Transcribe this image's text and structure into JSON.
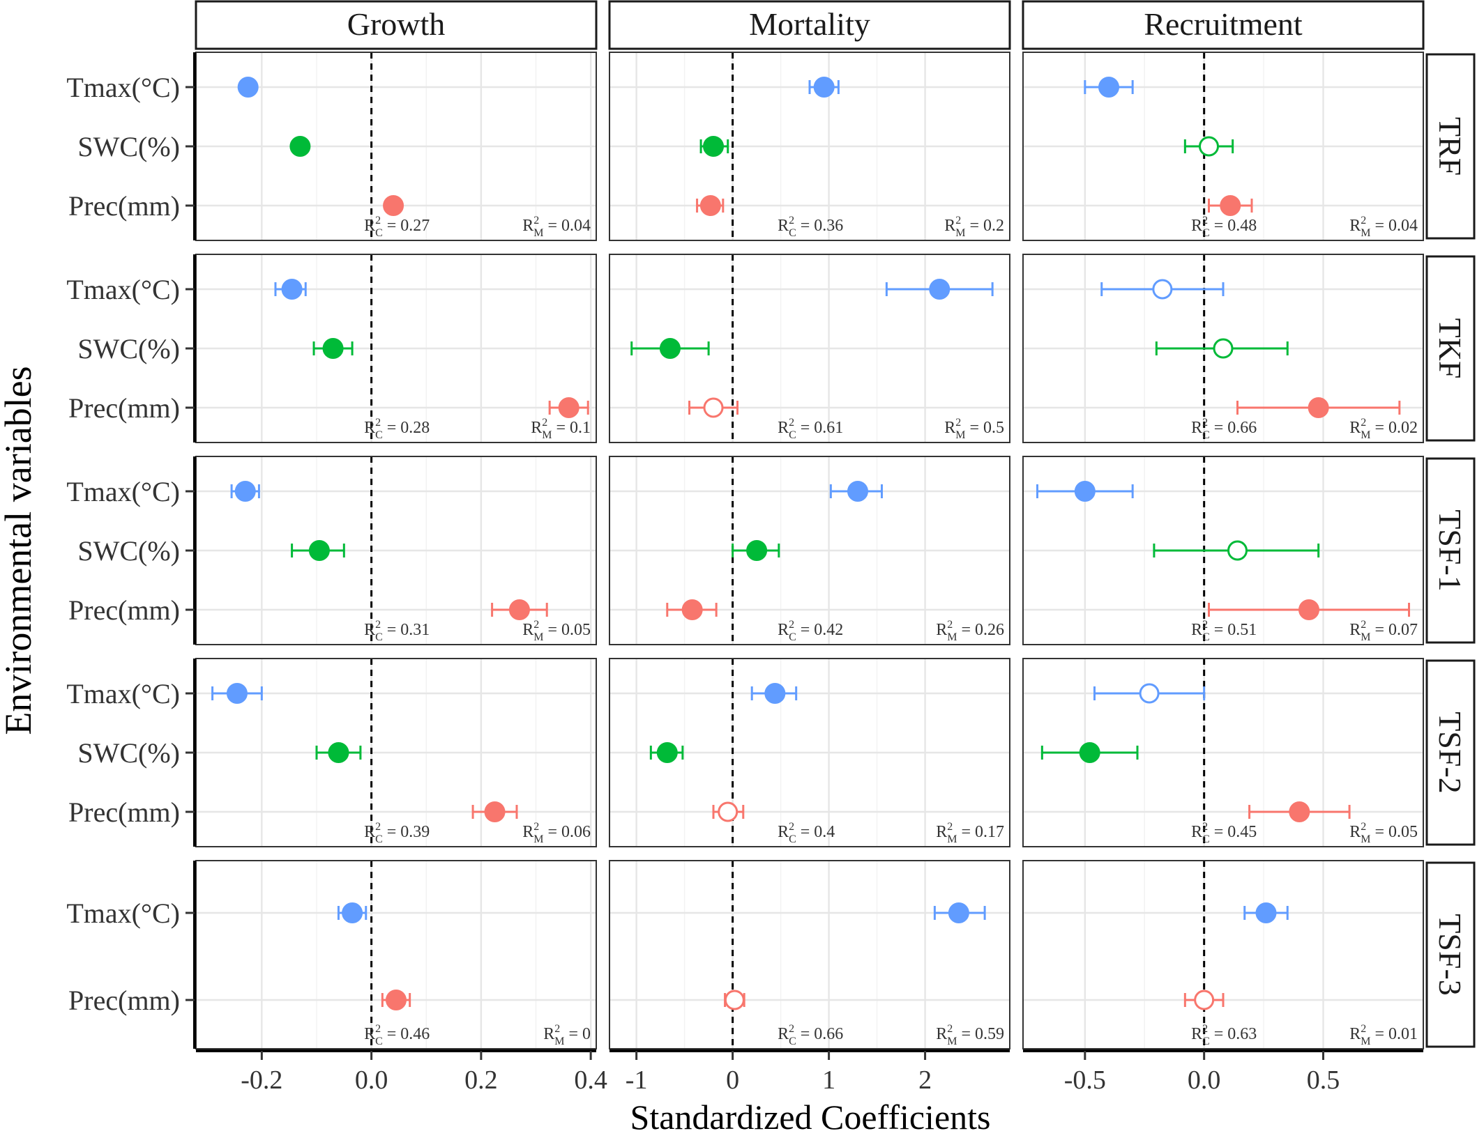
{
  "chart_data": {
    "type": "scatter",
    "subtype": "coefficient-plot with error bars, faceted grid",
    "ylabel": "Environmental variables",
    "xlabel": "Standardized Coefficients",
    "columns": [
      "Growth",
      "Mortality",
      "Recruitment"
    ],
    "rows": [
      "TRF",
      "TKF",
      "TSF-1",
      "TSF-2",
      "TSF-3"
    ],
    "x_axes": [
      {
        "column": "Growth",
        "xlim": [
          -0.32,
          0.41
        ],
        "ticks": [
          -0.2,
          0.0,
          0.2,
          0.4
        ],
        "tick_labels": [
          "-0.2",
          "0.0",
          "0.2",
          "0.4"
        ]
      },
      {
        "column": "Mortality",
        "xlim": [
          -1.28,
          2.88
        ],
        "ticks": [
          -1,
          0,
          1,
          2
        ],
        "tick_labels": [
          "-1",
          "0",
          "1",
          "2"
        ]
      },
      {
        "column": "Recruitment",
        "xlim": [
          -0.76,
          0.92
        ],
        "ticks": [
          -0.5,
          0.0,
          0.5
        ],
        "tick_labels": [
          "-0.5",
          "0.0",
          "0.5"
        ]
      }
    ],
    "reference_line_x": 0,
    "grid": true,
    "series_colors": {
      "Tmax": "#619CFF",
      "SWC": "#00BA38",
      "Prec": "#F8766D"
    },
    "variable_labels": {
      "Tmax": "Tmax(°C)",
      "SWC": "SWC(%)",
      "Prec": "Prec(mm)"
    },
    "r2_c_label": "R",
    "r2_c_sub": "C",
    "r2_m_label": "R",
    "r2_m_sub": "M",
    "r2_sup": "2",
    "panels": [
      {
        "row": "TRF",
        "column": "Growth",
        "r2c": "0.27",
        "r2m": "0.04",
        "points": [
          {
            "var": "Tmax",
            "est": -0.225,
            "lo": -0.235,
            "hi": -0.215,
            "significant": true
          },
          {
            "var": "SWC",
            "est": -0.13,
            "lo": -0.138,
            "hi": -0.122,
            "significant": true
          },
          {
            "var": "Prec",
            "est": 0.04,
            "lo": 0.033,
            "hi": 0.047,
            "significant": true
          }
        ]
      },
      {
        "row": "TRF",
        "column": "Mortality",
        "r2c": "0.36",
        "r2m": "0.2",
        "points": [
          {
            "var": "Tmax",
            "est": 0.95,
            "lo": 0.8,
            "hi": 1.1,
            "significant": true
          },
          {
            "var": "SWC",
            "est": -0.2,
            "lo": -0.33,
            "hi": -0.05,
            "significant": true
          },
          {
            "var": "Prec",
            "est": -0.23,
            "lo": -0.37,
            "hi": -0.1,
            "significant": true
          }
        ]
      },
      {
        "row": "TRF",
        "column": "Recruitment",
        "r2c": "0.48",
        "r2m": "0.04",
        "points": [
          {
            "var": "Tmax",
            "est": -0.4,
            "lo": -0.5,
            "hi": -0.3,
            "significant": true
          },
          {
            "var": "SWC",
            "est": 0.02,
            "lo": -0.08,
            "hi": 0.12,
            "significant": false
          },
          {
            "var": "Prec",
            "est": 0.11,
            "lo": 0.02,
            "hi": 0.2,
            "significant": true
          }
        ]
      },
      {
        "row": "TKF",
        "column": "Growth",
        "r2c": "0.28",
        "r2m": "0.1",
        "points": [
          {
            "var": "Tmax",
            "est": -0.145,
            "lo": -0.175,
            "hi": -0.12,
            "significant": true
          },
          {
            "var": "SWC",
            "est": -0.07,
            "lo": -0.105,
            "hi": -0.035,
            "significant": true
          },
          {
            "var": "Prec",
            "est": 0.36,
            "lo": 0.325,
            "hi": 0.395,
            "significant": true
          }
        ]
      },
      {
        "row": "TKF",
        "column": "Mortality",
        "r2c": "0.61",
        "r2m": "0.5",
        "points": [
          {
            "var": "Tmax",
            "est": 2.15,
            "lo": 1.6,
            "hi": 2.7,
            "significant": true
          },
          {
            "var": "SWC",
            "est": -0.65,
            "lo": -1.05,
            "hi": -0.25,
            "significant": true
          },
          {
            "var": "Prec",
            "est": -0.2,
            "lo": -0.45,
            "hi": 0.05,
            "significant": false
          }
        ]
      },
      {
        "row": "TKF",
        "column": "Recruitment",
        "r2c": "0.66",
        "r2m": "0.02",
        "points": [
          {
            "var": "Tmax",
            "est": -0.175,
            "lo": -0.43,
            "hi": 0.08,
            "significant": false
          },
          {
            "var": "SWC",
            "est": 0.08,
            "lo": -0.2,
            "hi": 0.35,
            "significant": false
          },
          {
            "var": "Prec",
            "est": 0.48,
            "lo": 0.14,
            "hi": 0.82,
            "significant": true
          }
        ]
      },
      {
        "row": "TSF-1",
        "column": "Growth",
        "r2c": "0.31",
        "r2m": "0.05",
        "points": [
          {
            "var": "Tmax",
            "est": -0.23,
            "lo": -0.255,
            "hi": -0.205,
            "significant": true
          },
          {
            "var": "SWC",
            "est": -0.095,
            "lo": -0.145,
            "hi": -0.05,
            "significant": true
          },
          {
            "var": "Prec",
            "est": 0.27,
            "lo": 0.22,
            "hi": 0.32,
            "significant": true
          }
        ]
      },
      {
        "row": "TSF-1",
        "column": "Mortality",
        "r2c": "0.42",
        "r2m": "0.26",
        "points": [
          {
            "var": "Tmax",
            "est": 1.3,
            "lo": 1.02,
            "hi": 1.55,
            "significant": true
          },
          {
            "var": "SWC",
            "est": 0.25,
            "lo": 0.0,
            "hi": 0.48,
            "significant": true
          },
          {
            "var": "Prec",
            "est": -0.42,
            "lo": -0.68,
            "hi": -0.17,
            "significant": true
          }
        ]
      },
      {
        "row": "TSF-1",
        "column": "Recruitment",
        "r2c": "0.51",
        "r2m": "0.07",
        "points": [
          {
            "var": "Tmax",
            "est": -0.5,
            "lo": -0.7,
            "hi": -0.3,
            "significant": true
          },
          {
            "var": "SWC",
            "est": 0.14,
            "lo": -0.21,
            "hi": 0.48,
            "significant": false
          },
          {
            "var": "Prec",
            "est": 0.44,
            "lo": 0.02,
            "hi": 0.86,
            "significant": true
          }
        ]
      },
      {
        "row": "TSF-2",
        "column": "Growth",
        "r2c": "0.39",
        "r2m": "0.06",
        "points": [
          {
            "var": "Tmax",
            "est": -0.245,
            "lo": -0.29,
            "hi": -0.2,
            "significant": true
          },
          {
            "var": "SWC",
            "est": -0.06,
            "lo": -0.1,
            "hi": -0.02,
            "significant": true
          },
          {
            "var": "Prec",
            "est": 0.225,
            "lo": 0.185,
            "hi": 0.265,
            "significant": true
          }
        ]
      },
      {
        "row": "TSF-2",
        "column": "Mortality",
        "r2c": "0.4",
        "r2m": "0.17",
        "points": [
          {
            "var": "Tmax",
            "est": 0.44,
            "lo": 0.2,
            "hi": 0.66,
            "significant": true
          },
          {
            "var": "SWC",
            "est": -0.68,
            "lo": -0.85,
            "hi": -0.52,
            "significant": true
          },
          {
            "var": "Prec",
            "est": -0.05,
            "lo": -0.2,
            "hi": 0.11,
            "significant": false
          }
        ]
      },
      {
        "row": "TSF-2",
        "column": "Recruitment",
        "r2c": "0.45",
        "r2m": "0.05",
        "points": [
          {
            "var": "Tmax",
            "est": -0.23,
            "lo": -0.46,
            "hi": 0.0,
            "significant": false
          },
          {
            "var": "SWC",
            "est": -0.48,
            "lo": -0.68,
            "hi": -0.28,
            "significant": true
          },
          {
            "var": "Prec",
            "est": 0.4,
            "lo": 0.19,
            "hi": 0.61,
            "significant": true
          }
        ]
      },
      {
        "row": "TSF-3",
        "column": "Growth",
        "r2c": "0.46",
        "r2m": "0",
        "points": [
          {
            "var": "Tmax",
            "est": -0.035,
            "lo": -0.06,
            "hi": -0.01,
            "significant": true
          },
          {
            "var": "Prec",
            "est": 0.045,
            "lo": 0.02,
            "hi": 0.07,
            "significant": true
          }
        ]
      },
      {
        "row": "TSF-3",
        "column": "Mortality",
        "r2c": "0.66",
        "r2m": "0.59",
        "points": [
          {
            "var": "Tmax",
            "est": 2.35,
            "lo": 2.1,
            "hi": 2.62,
            "significant": true
          },
          {
            "var": "Prec",
            "est": 0.02,
            "lo": -0.08,
            "hi": 0.12,
            "significant": false
          }
        ]
      },
      {
        "row": "TSF-3",
        "column": "Recruitment",
        "r2c": "0.63",
        "r2m": "0.01",
        "points": [
          {
            "var": "Tmax",
            "est": 0.26,
            "lo": 0.17,
            "hi": 0.35,
            "significant": true
          },
          {
            "var": "Prec",
            "est": 0.0,
            "lo": -0.08,
            "hi": 0.08,
            "significant": false
          }
        ]
      }
    ]
  }
}
